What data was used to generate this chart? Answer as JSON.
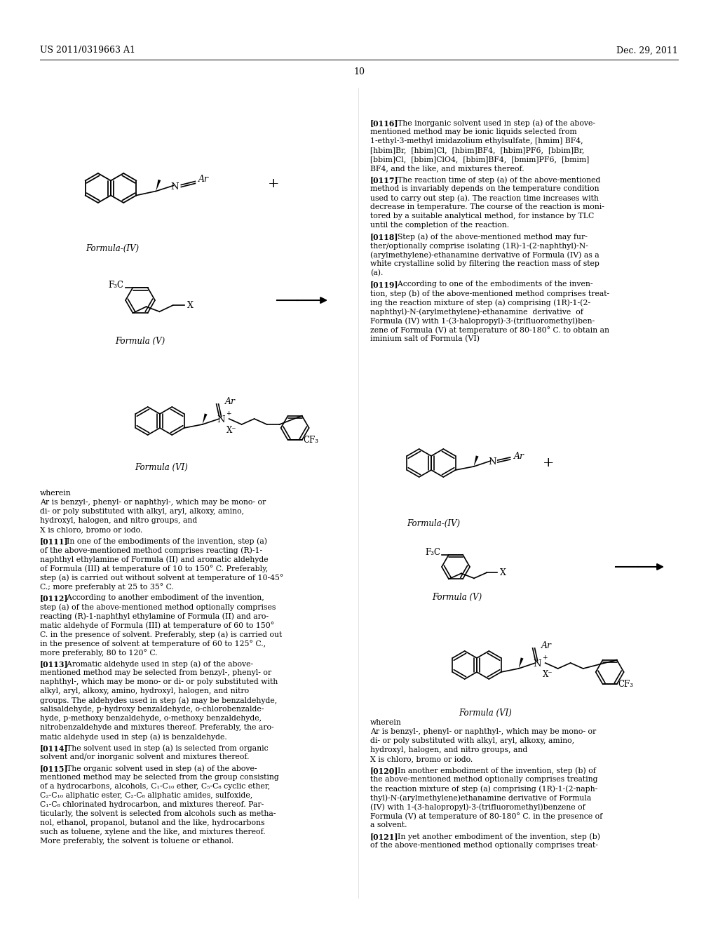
{
  "background_color": "#ffffff",
  "header_left": "US 2011/0319663 A1",
  "header_right": "Dec. 29, 2011",
  "page_number": "10"
}
